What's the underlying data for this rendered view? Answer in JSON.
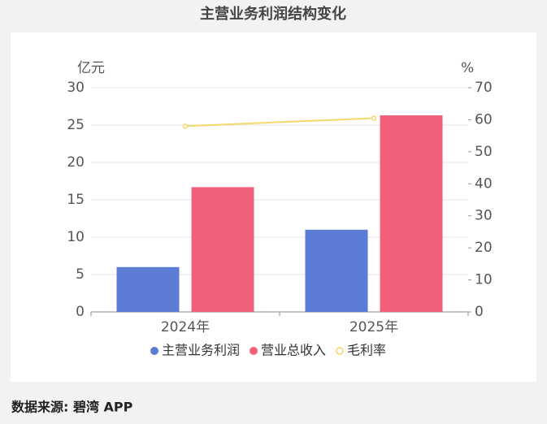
{
  "chart_data": {
    "type": "bar",
    "title": "主营业务利润结构变化",
    "y_label": "亿元",
    "y2_label": "%",
    "categories": [
      "2024年",
      "2025年"
    ],
    "series": [
      {
        "name": "主营业务利润",
        "color": "#5b7bd5",
        "values": [
          6.0,
          11.0
        ]
      },
      {
        "name": "营业总收入",
        "color": "#f0607a",
        "values": [
          16.7,
          26.3
        ]
      },
      {
        "name": "毛利率",
        "color": "#f5d86a",
        "type": "line",
        "axis": "y2",
        "values": [
          58,
          60.5
        ]
      }
    ],
    "ylim": [
      0,
      30
    ],
    "yticks": [
      0,
      5,
      10,
      15,
      20,
      25,
      30
    ],
    "y2lim": [
      0,
      70
    ],
    "y2ticks": [
      0,
      10,
      20,
      30,
      40,
      50,
      60,
      70
    ],
    "grid": true,
    "source": "数据来源: 碧湾 APP"
  }
}
